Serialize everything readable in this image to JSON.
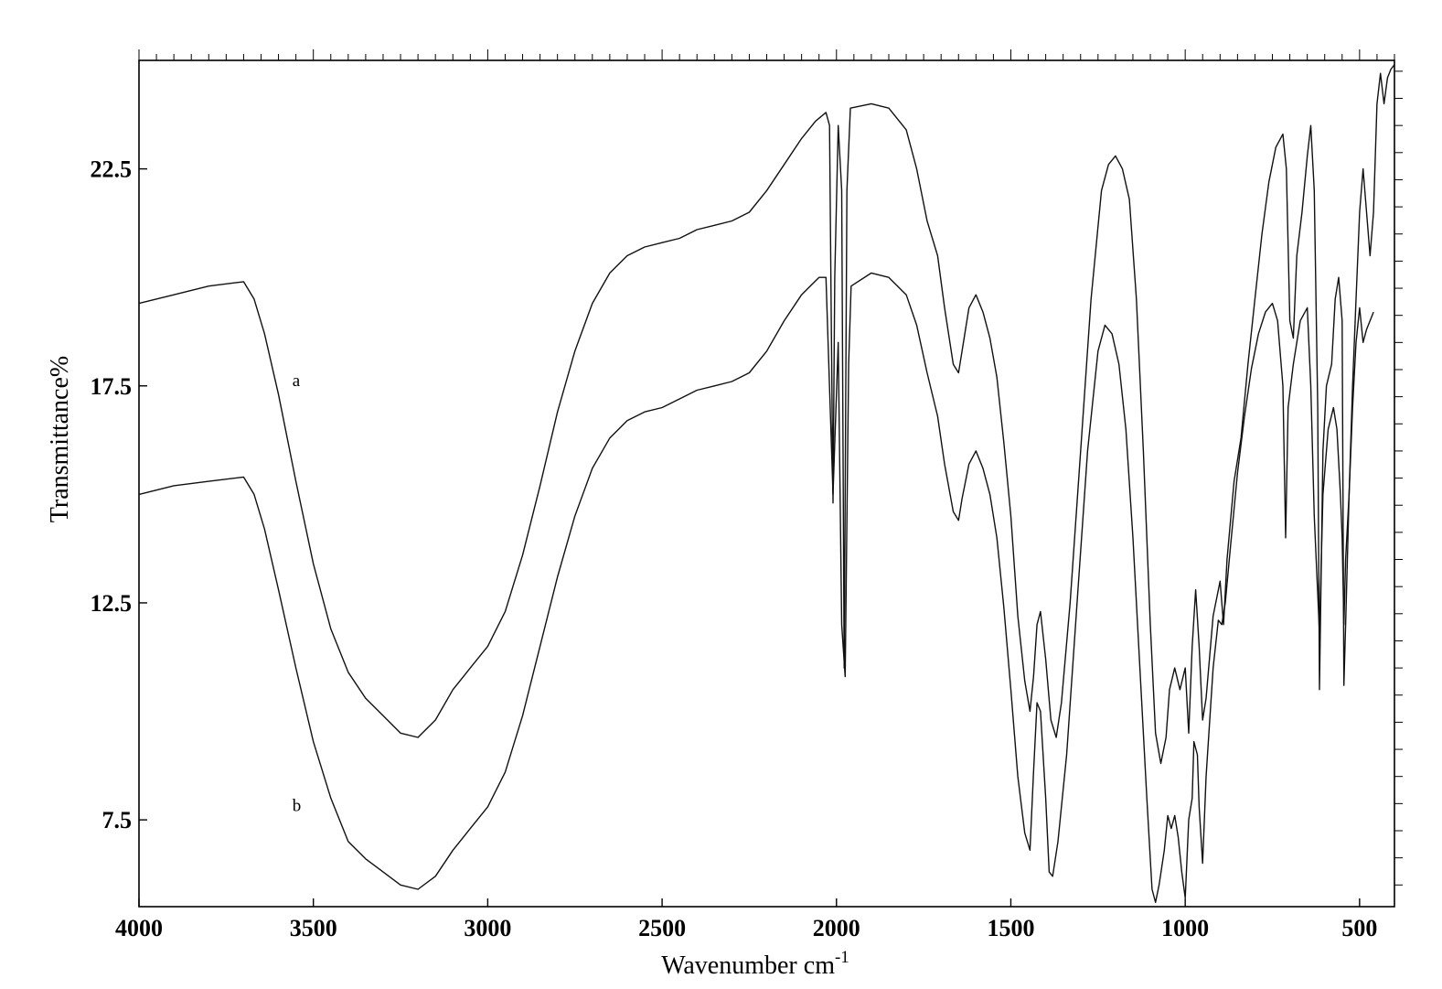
{
  "chart_data": {
    "type": "line",
    "title": "",
    "xlabel": "Wavenumber cm",
    "xlabel_sup": "-1",
    "ylabel": "Transmittance%",
    "xlim": [
      4000,
      400
    ],
    "ylim": [
      5.5,
      25.0
    ],
    "x_ticks": [
      4000,
      3500,
      3000,
      2500,
      2000,
      1500,
      1000,
      500
    ],
    "y_ticks": [
      7.5,
      12.5,
      17.5,
      22.5
    ],
    "grid": false,
    "series": [
      {
        "name": "a",
        "label_at": [
          3560,
          17.5
        ],
        "points": [
          [
            4000,
            19.4
          ],
          [
            3900,
            19.6
          ],
          [
            3800,
            19.8
          ],
          [
            3700,
            19.9
          ],
          [
            3670,
            19.5
          ],
          [
            3640,
            18.7
          ],
          [
            3600,
            17.3
          ],
          [
            3550,
            15.3
          ],
          [
            3500,
            13.4
          ],
          [
            3450,
            11.9
          ],
          [
            3400,
            10.9
          ],
          [
            3350,
            10.3
          ],
          [
            3300,
            9.9
          ],
          [
            3250,
            9.5
          ],
          [
            3200,
            9.4
          ],
          [
            3150,
            9.8
          ],
          [
            3100,
            10.5
          ],
          [
            3050,
            11.0
          ],
          [
            3000,
            11.5
          ],
          [
            2950,
            12.3
          ],
          [
            2900,
            13.6
          ],
          [
            2850,
            15.2
          ],
          [
            2800,
            16.9
          ],
          [
            2750,
            18.3
          ],
          [
            2700,
            19.4
          ],
          [
            2650,
            20.1
          ],
          [
            2600,
            20.5
          ],
          [
            2550,
            20.7
          ],
          [
            2500,
            20.8
          ],
          [
            2450,
            20.9
          ],
          [
            2400,
            21.1
          ],
          [
            2350,
            21.2
          ],
          [
            2300,
            21.3
          ],
          [
            2250,
            21.5
          ],
          [
            2200,
            22.0
          ],
          [
            2150,
            22.6
          ],
          [
            2100,
            23.2
          ],
          [
            2060,
            23.6
          ],
          [
            2030,
            23.8
          ],
          [
            2020,
            23.5
          ],
          [
            2015,
            19.0
          ],
          [
            2010,
            14.8
          ],
          [
            2005,
            20.0
          ],
          [
            1995,
            23.5
          ],
          [
            1985,
            22.0
          ],
          [
            1978,
            11.0
          ],
          [
            1970,
            22.0
          ],
          [
            1960,
            23.9
          ],
          [
            1900,
            24.0
          ],
          [
            1850,
            23.9
          ],
          [
            1800,
            23.4
          ],
          [
            1770,
            22.5
          ],
          [
            1740,
            21.3
          ],
          [
            1710,
            20.5
          ],
          [
            1690,
            19.3
          ],
          [
            1665,
            18.0
          ],
          [
            1650,
            17.8
          ],
          [
            1640,
            18.3
          ],
          [
            1620,
            19.3
          ],
          [
            1600,
            19.6
          ],
          [
            1580,
            19.2
          ],
          [
            1560,
            18.6
          ],
          [
            1540,
            17.7
          ],
          [
            1520,
            16.2
          ],
          [
            1500,
            14.5
          ],
          [
            1480,
            12.2
          ],
          [
            1460,
            10.7
          ],
          [
            1445,
            10.0
          ],
          [
            1435,
            10.8
          ],
          [
            1425,
            12.0
          ],
          [
            1415,
            12.3
          ],
          [
            1400,
            11.2
          ],
          [
            1385,
            9.8
          ],
          [
            1370,
            9.4
          ],
          [
            1355,
            10.2
          ],
          [
            1330,
            12.5
          ],
          [
            1300,
            16.0
          ],
          [
            1270,
            19.5
          ],
          [
            1240,
            22.0
          ],
          [
            1220,
            22.6
          ],
          [
            1200,
            22.8
          ],
          [
            1180,
            22.5
          ],
          [
            1160,
            21.8
          ],
          [
            1140,
            19.5
          ],
          [
            1120,
            16.0
          ],
          [
            1100,
            12.0
          ],
          [
            1085,
            9.5
          ],
          [
            1070,
            8.8
          ],
          [
            1055,
            9.4
          ],
          [
            1045,
            10.5
          ],
          [
            1030,
            11.0
          ],
          [
            1015,
            10.5
          ],
          [
            1000,
            11.0
          ],
          [
            990,
            9.5
          ],
          [
            980,
            11.5
          ],
          [
            970,
            12.8
          ],
          [
            960,
            11.5
          ],
          [
            950,
            9.8
          ],
          [
            940,
            10.3
          ],
          [
            920,
            12.2
          ],
          [
            900,
            13.0
          ],
          [
            890,
            12.0
          ],
          [
            880,
            13.5
          ],
          [
            860,
            15.3
          ],
          [
            840,
            16.3
          ],
          [
            820,
            18.0
          ],
          [
            800,
            19.5
          ],
          [
            780,
            21.0
          ],
          [
            760,
            22.2
          ],
          [
            740,
            23.0
          ],
          [
            720,
            23.3
          ],
          [
            710,
            22.5
          ],
          [
            700,
            19.0
          ],
          [
            690,
            18.6
          ],
          [
            680,
            20.5
          ],
          [
            665,
            21.5
          ],
          [
            650,
            22.8
          ],
          [
            640,
            23.5
          ],
          [
            630,
            22.0
          ],
          [
            620,
            17.0
          ],
          [
            615,
            10.5
          ],
          [
            605,
            16.0
          ],
          [
            595,
            17.5
          ],
          [
            580,
            18.0
          ],
          [
            570,
            19.5
          ],
          [
            560,
            20.0
          ],
          [
            550,
            19.0
          ],
          [
            545,
            10.6
          ],
          [
            540,
            12.0
          ],
          [
            530,
            15.0
          ],
          [
            520,
            17.5
          ],
          [
            510,
            19.5
          ],
          [
            500,
            21.5
          ],
          [
            490,
            22.5
          ],
          [
            480,
            21.5
          ],
          [
            470,
            20.5
          ],
          [
            460,
            21.5
          ],
          [
            450,
            24.0
          ],
          [
            440,
            24.7
          ],
          [
            430,
            24.0
          ],
          [
            420,
            24.6
          ],
          [
            410,
            24.8
          ],
          [
            400,
            24.9
          ]
        ]
      },
      {
        "name": "b",
        "label_at": [
          3560,
          7.7
        ],
        "points": [
          [
            4000,
            15.0
          ],
          [
            3900,
            15.2
          ],
          [
            3800,
            15.3
          ],
          [
            3700,
            15.4
          ],
          [
            3670,
            15.0
          ],
          [
            3640,
            14.2
          ],
          [
            3600,
            12.8
          ],
          [
            3550,
            11.0
          ],
          [
            3500,
            9.3
          ],
          [
            3450,
            8.0
          ],
          [
            3400,
            7.0
          ],
          [
            3350,
            6.6
          ],
          [
            3300,
            6.3
          ],
          [
            3250,
            6.0
          ],
          [
            3200,
            5.9
          ],
          [
            3150,
            6.2
          ],
          [
            3100,
            6.8
          ],
          [
            3050,
            7.3
          ],
          [
            3000,
            7.8
          ],
          [
            2950,
            8.6
          ],
          [
            2900,
            9.9
          ],
          [
            2850,
            11.5
          ],
          [
            2800,
            13.1
          ],
          [
            2750,
            14.5
          ],
          [
            2700,
            15.6
          ],
          [
            2650,
            16.3
          ],
          [
            2600,
            16.7
          ],
          [
            2550,
            16.9
          ],
          [
            2500,
            17.0
          ],
          [
            2450,
            17.2
          ],
          [
            2400,
            17.4
          ],
          [
            2350,
            17.5
          ],
          [
            2300,
            17.6
          ],
          [
            2250,
            17.8
          ],
          [
            2200,
            18.3
          ],
          [
            2150,
            19.0
          ],
          [
            2100,
            19.6
          ],
          [
            2050,
            20.0
          ],
          [
            2030,
            20.0
          ],
          [
            2010,
            15.0
          ],
          [
            1995,
            18.5
          ],
          [
            1985,
            12.0
          ],
          [
            1975,
            10.8
          ],
          [
            1965,
            18.0
          ],
          [
            1958,
            19.8
          ],
          [
            1900,
            20.1
          ],
          [
            1850,
            20.0
          ],
          [
            1800,
            19.6
          ],
          [
            1770,
            18.9
          ],
          [
            1740,
            17.8
          ],
          [
            1710,
            16.8
          ],
          [
            1690,
            15.7
          ],
          [
            1665,
            14.6
          ],
          [
            1650,
            14.4
          ],
          [
            1640,
            14.9
          ],
          [
            1620,
            15.7
          ],
          [
            1600,
            16.0
          ],
          [
            1580,
            15.6
          ],
          [
            1560,
            15.0
          ],
          [
            1540,
            14.0
          ],
          [
            1520,
            12.4
          ],
          [
            1500,
            10.5
          ],
          [
            1480,
            8.5
          ],
          [
            1460,
            7.2
          ],
          [
            1445,
            6.8
          ],
          [
            1435,
            8.6
          ],
          [
            1425,
            10.2
          ],
          [
            1415,
            10.0
          ],
          [
            1400,
            8.0
          ],
          [
            1390,
            6.3
          ],
          [
            1380,
            6.2
          ],
          [
            1365,
            7.0
          ],
          [
            1340,
            9.0
          ],
          [
            1310,
            12.5
          ],
          [
            1280,
            16.0
          ],
          [
            1250,
            18.3
          ],
          [
            1230,
            18.9
          ],
          [
            1210,
            18.7
          ],
          [
            1190,
            18.0
          ],
          [
            1170,
            16.5
          ],
          [
            1150,
            14.0
          ],
          [
            1130,
            11.0
          ],
          [
            1110,
            8.0
          ],
          [
            1095,
            5.9
          ],
          [
            1085,
            5.6
          ],
          [
            1075,
            6.0
          ],
          [
            1060,
            6.8
          ],
          [
            1050,
            7.6
          ],
          [
            1040,
            7.3
          ],
          [
            1030,
            7.6
          ],
          [
            1020,
            7.1
          ],
          [
            1010,
            6.3
          ],
          [
            1000,
            5.7
          ],
          [
            990,
            7.5
          ],
          [
            980,
            8.0
          ],
          [
            975,
            9.3
          ],
          [
            965,
            9.0
          ],
          [
            960,
            7.8
          ],
          [
            950,
            6.5
          ],
          [
            940,
            8.5
          ],
          [
            920,
            11.0
          ],
          [
            905,
            12.1
          ],
          [
            895,
            12.0
          ],
          [
            885,
            12.5
          ],
          [
            870,
            13.8
          ],
          [
            850,
            15.5
          ],
          [
            830,
            16.8
          ],
          [
            810,
            17.9
          ],
          [
            790,
            18.7
          ],
          [
            770,
            19.2
          ],
          [
            750,
            19.4
          ],
          [
            735,
            19.0
          ],
          [
            720,
            17.5
          ],
          [
            712,
            14.0
          ],
          [
            705,
            17.0
          ],
          [
            690,
            18.0
          ],
          [
            670,
            19.0
          ],
          [
            650,
            19.3
          ],
          [
            640,
            17.5
          ],
          [
            630,
            14.5
          ],
          [
            615,
            11.8
          ],
          [
            605,
            15.0
          ],
          [
            590,
            16.5
          ],
          [
            575,
            17.0
          ],
          [
            565,
            16.5
          ],
          [
            555,
            15.0
          ],
          [
            550,
            14.0
          ],
          [
            545,
            12.0
          ],
          [
            540,
            13.5
          ],
          [
            530,
            15.0
          ],
          [
            520,
            17.0
          ],
          [
            510,
            18.5
          ],
          [
            500,
            19.3
          ],
          [
            490,
            18.5
          ],
          [
            480,
            18.8
          ],
          [
            470,
            19.0
          ],
          [
            460,
            19.2
          ]
        ]
      }
    ]
  }
}
